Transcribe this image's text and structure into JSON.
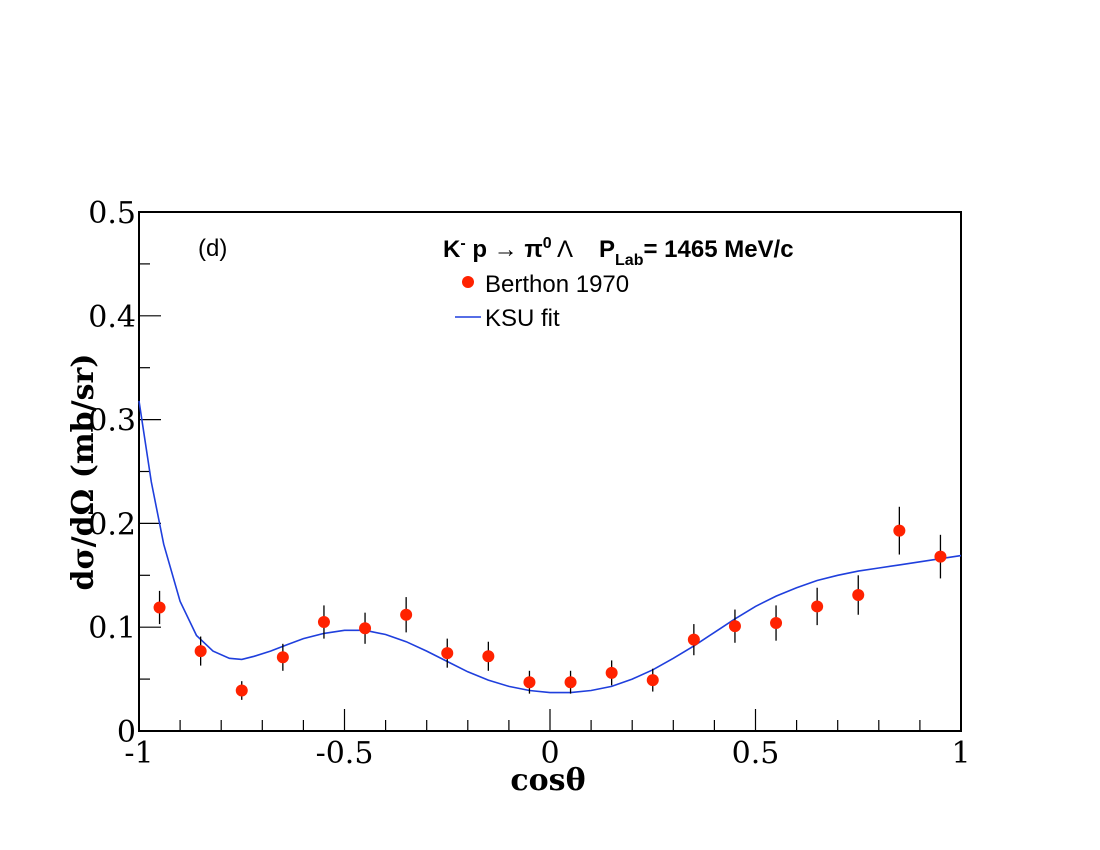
{
  "chart_data": {
    "type": "scatter",
    "panel_label": "(d)",
    "title": {
      "reaction_prefix": "K",
      "reaction_sup": "-",
      "reaction_mid": " p → π",
      "reaction_sup2": "0",
      "reaction_end": " Λ",
      "plab_prefix": "P",
      "plab_sub": "Lab",
      "plab_value": "= 1465 MeV/c"
    },
    "xlabel": "cosθ",
    "ylabel": "dσ/dΩ (mb/sr)",
    "xlim": [
      -1,
      1
    ],
    "ylim": [
      0,
      0.5
    ],
    "x_ticks": [
      {
        "value": -1,
        "label": "-1"
      },
      {
        "value": -0.5,
        "label": "-0.5"
      },
      {
        "value": 0,
        "label": "0"
      },
      {
        "value": 0.5,
        "label": "0.5"
      },
      {
        "value": 1,
        "label": "1"
      }
    ],
    "y_ticks": [
      {
        "value": 0,
        "label": "0"
      },
      {
        "value": 0.1,
        "label": "0.1"
      },
      {
        "value": 0.2,
        "label": "0.2"
      },
      {
        "value": 0.3,
        "label": "0.3"
      },
      {
        "value": 0.4,
        "label": "0.4"
      },
      {
        "value": 0.5,
        "label": "0.5"
      }
    ],
    "legend_position": "top-right",
    "grid": false,
    "series": [
      {
        "name": "Berthon 1970",
        "kind": "points",
        "color": "#ff2200",
        "x": [
          -0.95,
          -0.85,
          -0.75,
          -0.65,
          -0.55,
          -0.45,
          -0.35,
          -0.25,
          -0.15,
          -0.05,
          0.05,
          0.15,
          0.25,
          0.35,
          0.45,
          0.55,
          0.65,
          0.75,
          0.85,
          0.95
        ],
        "y": [
          0.119,
          0.077,
          0.039,
          0.071,
          0.105,
          0.099,
          0.112,
          0.075,
          0.072,
          0.047,
          0.047,
          0.056,
          0.049,
          0.088,
          0.101,
          0.104,
          0.12,
          0.131,
          0.193,
          0.168
        ],
        "err": [
          0.016,
          0.014,
          0.009,
          0.013,
          0.016,
          0.015,
          0.017,
          0.014,
          0.014,
          0.011,
          0.011,
          0.012,
          0.011,
          0.015,
          0.016,
          0.017,
          0.018,
          0.019,
          0.023,
          0.021
        ]
      },
      {
        "name": "KSU fit",
        "kind": "line",
        "color": "#1f3fdd",
        "x": [
          -1.0,
          -0.97,
          -0.94,
          -0.9,
          -0.86,
          -0.82,
          -0.78,
          -0.75,
          -0.72,
          -0.68,
          -0.64,
          -0.6,
          -0.55,
          -0.5,
          -0.45,
          -0.4,
          -0.35,
          -0.3,
          -0.25,
          -0.2,
          -0.15,
          -0.1,
          -0.05,
          0.0,
          0.05,
          0.1,
          0.15,
          0.2,
          0.25,
          0.3,
          0.35,
          0.4,
          0.45,
          0.5,
          0.55,
          0.6,
          0.65,
          0.7,
          0.75,
          0.8,
          0.85,
          0.9,
          0.95,
          1.0
        ],
        "y": [
          0.318,
          0.24,
          0.18,
          0.125,
          0.092,
          0.077,
          0.07,
          0.069,
          0.072,
          0.077,
          0.083,
          0.089,
          0.094,
          0.097,
          0.097,
          0.093,
          0.086,
          0.077,
          0.067,
          0.057,
          0.049,
          0.043,
          0.039,
          0.037,
          0.037,
          0.039,
          0.043,
          0.05,
          0.059,
          0.07,
          0.082,
          0.095,
          0.108,
          0.12,
          0.13,
          0.138,
          0.145,
          0.15,
          0.154,
          0.157,
          0.16,
          0.163,
          0.166,
          0.169
        ]
      }
    ]
  }
}
